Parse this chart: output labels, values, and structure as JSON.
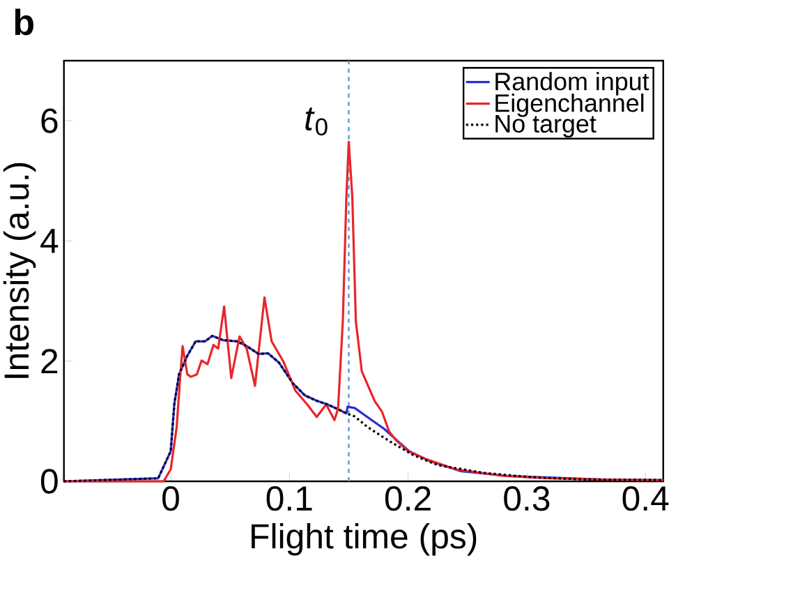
{
  "chart_data": {
    "type": "line",
    "xlabel": "Flight time (ps)",
    "ylabel": "Intensity (a.u.)",
    "xlim": [
      -0.09,
      0.415
    ],
    "ylim": [
      0,
      7
    ],
    "xticks": [
      0,
      0.1,
      0.2,
      0.3,
      0.4
    ],
    "yticks": [
      0,
      2,
      4,
      6
    ],
    "legend": "top right",
    "series": [
      {
        "name": "Random input",
        "color": "#2b2bd6",
        "line_style": "solid",
        "x": [
          -0.09,
          -0.0106,
          0.0,
          0.003,
          0.007,
          0.014,
          0.021,
          0.029,
          0.035,
          0.044,
          0.056,
          0.064,
          0.074,
          0.082,
          0.091,
          0.103,
          0.113,
          0.123,
          0.132,
          0.142,
          0.148,
          0.149,
          0.155,
          0.165,
          0.18,
          0.189,
          0.201,
          0.218,
          0.235,
          0.244,
          0.284,
          0.323,
          0.362,
          0.415
        ],
        "values": [
          0,
          0.05,
          0.5,
          1.28,
          1.78,
          2.09,
          2.33,
          2.33,
          2.42,
          2.35,
          2.33,
          2.25,
          2.12,
          2.13,
          1.98,
          1.63,
          1.43,
          1.34,
          1.28,
          1.19,
          1.13,
          1.24,
          1.22,
          1.08,
          0.87,
          0.71,
          0.5,
          0.34,
          0.23,
          0.17,
          0.09,
          0.06,
          0.03,
          0.02
        ]
      },
      {
        "name": "Eigenchannel",
        "color": "#e8262a",
        "line_style": "solid",
        "x": [
          -0.09,
          -0.006,
          0.0,
          0.005,
          0.008,
          0.01,
          0.014,
          0.017,
          0.022,
          0.026,
          0.031,
          0.036,
          0.04,
          0.045,
          0.051,
          0.058,
          0.064,
          0.071,
          0.079,
          0.085,
          0.095,
          0.105,
          0.115,
          0.123,
          0.131,
          0.138,
          0.141,
          0.145,
          0.148,
          0.15,
          0.153,
          0.156,
          0.161,
          0.172,
          0.178,
          0.184,
          0.19,
          0.2,
          0.215,
          0.24,
          0.28,
          0.32,
          0.36,
          0.415
        ],
        "values": [
          0,
          0,
          0.2,
          0.9,
          1.74,
          2.25,
          1.78,
          1.74,
          1.78,
          2.01,
          1.95,
          2.27,
          2.21,
          2.91,
          1.72,
          2.41,
          2.21,
          1.59,
          3.06,
          2.33,
          1.99,
          1.51,
          1.28,
          1.07,
          1.28,
          1.02,
          1.21,
          2.66,
          4.73,
          5.65,
          4.73,
          2.66,
          1.83,
          1.33,
          1.16,
          0.83,
          0.68,
          0.5,
          0.37,
          0.2,
          0.09,
          0.05,
          0.03,
          0.02
        ]
      },
      {
        "name": "No target",
        "color": "#000000",
        "line_style": "dotted",
        "x": [
          -0.09,
          -0.0106,
          0.0,
          0.003,
          0.007,
          0.014,
          0.021,
          0.029,
          0.035,
          0.044,
          0.056,
          0.064,
          0.074,
          0.082,
          0.091,
          0.103,
          0.113,
          0.123,
          0.132,
          0.142,
          0.148,
          0.155,
          0.166,
          0.185,
          0.205,
          0.225,
          0.264,
          0.303,
          0.35,
          0.415
        ],
        "values": [
          0,
          0.05,
          0.5,
          1.28,
          1.78,
          2.09,
          2.33,
          2.33,
          2.42,
          2.35,
          2.33,
          2.25,
          2.12,
          2.13,
          1.98,
          1.63,
          1.43,
          1.34,
          1.28,
          1.19,
          1.13,
          1.08,
          0.9,
          0.66,
          0.43,
          0.27,
          0.14,
          0.07,
          0.03,
          0.02
        ]
      }
    ],
    "ref_lines": [
      {
        "axis": "x",
        "value": 0.15,
        "label": "*t*$_{0}$",
        "color": "#5b9bd5",
        "line_style": "dashed"
      }
    ],
    "annotations": [
      "b"
    ]
  }
}
